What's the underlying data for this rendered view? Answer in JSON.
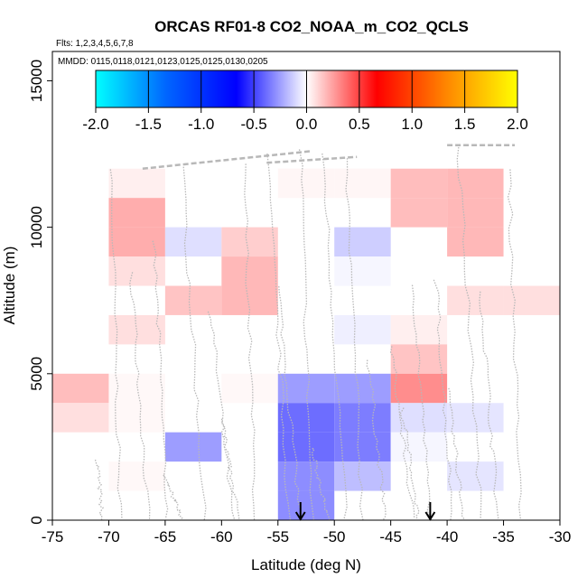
{
  "chart_data": {
    "type": "heatmap",
    "title": "ORCAS RF01-8 CO2_NOAA_m_CO2_QCLS",
    "flights_label": "Flts: 1,2,3,4,5,6,7,8",
    "dates_label": "MMDD: 0115,0118,0121,0123,0125,0125,0130,0205",
    "xlabel": "Latitude (deg N)",
    "ylabel": "Altitude (m)",
    "xlim": [
      -75,
      -30
    ],
    "ylim": [
      0,
      16000
    ],
    "x_ticks": [
      -75,
      -70,
      -65,
      -60,
      -55,
      -50,
      -45,
      -40,
      -35,
      -30
    ],
    "x_tick_labels": [
      "-75",
      "-70",
      "-65",
      "-60",
      "-55",
      "-50",
      "-45",
      "-40",
      "-35",
      "-30"
    ],
    "y_ticks": [
      0,
      5000,
      10000,
      15000
    ],
    "y_tick_labels": [
      "0",
      "5000",
      "10000",
      "15000"
    ],
    "colorbar": {
      "range": [
        -2.0,
        2.0
      ],
      "ticks": [
        -2.0,
        -1.5,
        -1.0,
        -0.5,
        0.0,
        0.5,
        1.0,
        1.5,
        2.0
      ],
      "tick_labels": [
        "-2.0",
        "-1.5",
        "-1.0",
        "-0.5",
        "0.0",
        "0.5",
        "1.0",
        "1.5",
        "2.0"
      ],
      "stops": [
        "#00ffff",
        "#0066ff",
        "#0000ff",
        "#ffffff",
        "#ff0000",
        "#ff8800",
        "#ffff00"
      ]
    },
    "bin_width_lat": 5,
    "bin_height_alt": 1000,
    "cells": [
      {
        "lat": -75,
        "alt": 4000,
        "value": 0.2
      },
      {
        "lat": -75,
        "alt": 3000,
        "value": 0.1
      },
      {
        "lat": -70,
        "alt": 11000,
        "value": 0.05
      },
      {
        "lat": -70,
        "alt": 10000,
        "value": 0.25
      },
      {
        "lat": -70,
        "alt": 9000,
        "value": 0.25
      },
      {
        "lat": -70,
        "alt": 8000,
        "value": 0.1
      },
      {
        "lat": -70,
        "alt": 6000,
        "value": 0.1
      },
      {
        "lat": -70,
        "alt": 4000,
        "value": 0.02
      },
      {
        "lat": -70,
        "alt": 3000,
        "value": 0.02
      },
      {
        "lat": -70,
        "alt": 1000,
        "value": 0.02
      },
      {
        "lat": -65,
        "alt": 9000,
        "value": -0.1
      },
      {
        "lat": -65,
        "alt": 7000,
        "value": 0.18
      },
      {
        "lat": -65,
        "alt": 2000,
        "value": -0.3
      },
      {
        "lat": -60,
        "alt": 9000,
        "value": 0.15
      },
      {
        "lat": -60,
        "alt": 8000,
        "value": 0.22
      },
      {
        "lat": -60,
        "alt": 7000,
        "value": 0.22
      },
      {
        "lat": -60,
        "alt": 4000,
        "value": 0.02
      },
      {
        "lat": -55,
        "alt": 11000,
        "value": 0.03
      },
      {
        "lat": -55,
        "alt": 4000,
        "value": -0.3
      },
      {
        "lat": -55,
        "alt": 3000,
        "value": -0.45
      },
      {
        "lat": -55,
        "alt": 2000,
        "value": -0.45
      },
      {
        "lat": -55,
        "alt": 1000,
        "value": -0.35
      },
      {
        "lat": -55,
        "alt": 0,
        "value": -0.35
      },
      {
        "lat": -50,
        "alt": 11000,
        "value": 0.03
      },
      {
        "lat": -50,
        "alt": 9000,
        "value": -0.15
      },
      {
        "lat": -50,
        "alt": 8000,
        "value": -0.03
      },
      {
        "lat": -50,
        "alt": 6000,
        "value": -0.05
      },
      {
        "lat": -50,
        "alt": 4000,
        "value": -0.3
      },
      {
        "lat": -50,
        "alt": 3000,
        "value": -0.4
      },
      {
        "lat": -50,
        "alt": 2000,
        "value": -0.4
      },
      {
        "lat": -50,
        "alt": 1000,
        "value": -0.2
      },
      {
        "lat": -45,
        "alt": 11000,
        "value": 0.2
      },
      {
        "lat": -45,
        "alt": 10000,
        "value": 0.2
      },
      {
        "lat": -45,
        "alt": 6000,
        "value": 0.05
      },
      {
        "lat": -45,
        "alt": 5000,
        "value": 0.18
      },
      {
        "lat": -45,
        "alt": 4000,
        "value": 0.35
      },
      {
        "lat": -45,
        "alt": 3000,
        "value": -0.1
      },
      {
        "lat": -45,
        "alt": 2000,
        "value": -0.03
      },
      {
        "lat": -40,
        "alt": 11000,
        "value": 0.22
      },
      {
        "lat": -40,
        "alt": 10000,
        "value": 0.22
      },
      {
        "lat": -40,
        "alt": 9000,
        "value": 0.22
      },
      {
        "lat": -40,
        "alt": 7000,
        "value": 0.1
      },
      {
        "lat": -40,
        "alt": 3000,
        "value": -0.08
      },
      {
        "lat": -40,
        "alt": 1000,
        "value": -0.08
      },
      {
        "lat": -35,
        "alt": 7000,
        "value": 0.1
      }
    ],
    "arrow_markers_lat": [
      -53,
      -41.5
    ]
  }
}
